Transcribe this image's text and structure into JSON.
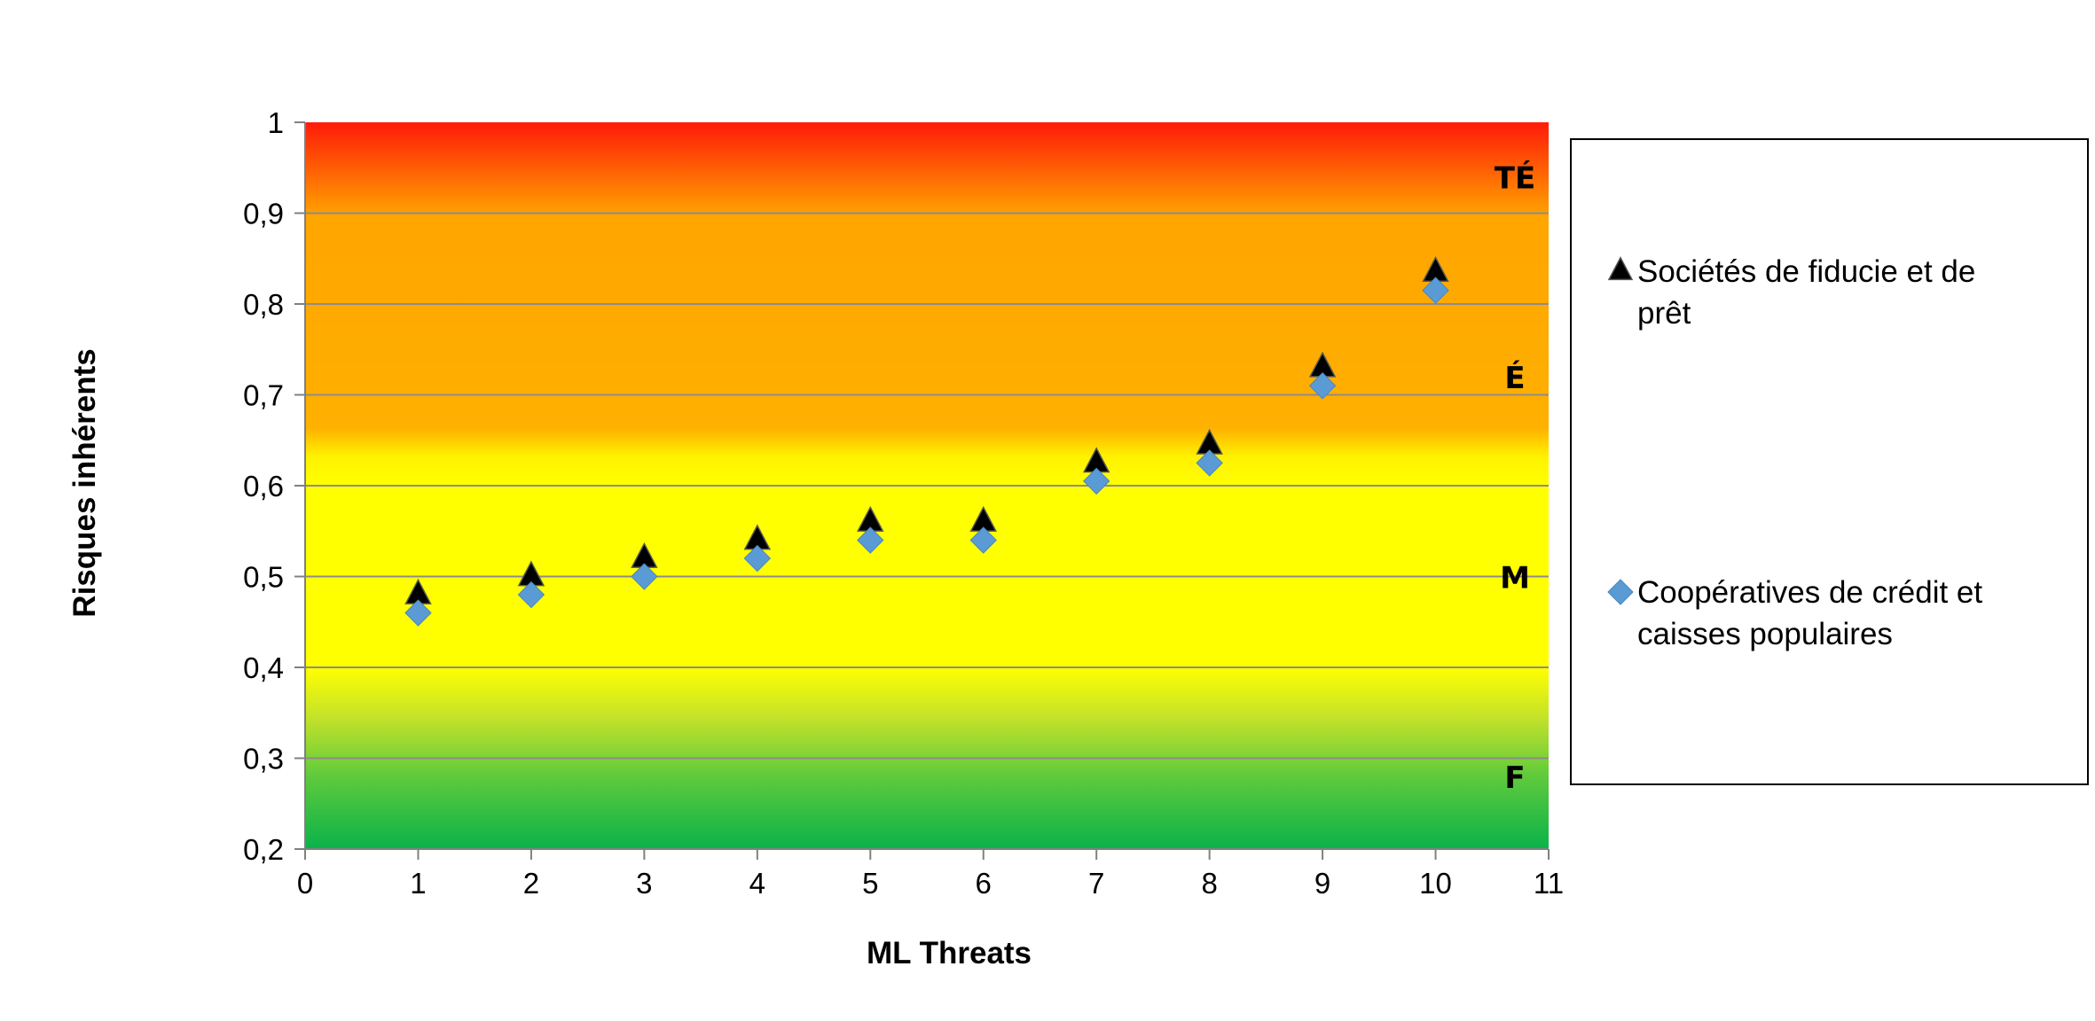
{
  "chart_data": {
    "type": "scatter",
    "title": "",
    "xlabel": "ML Threats",
    "ylabel": "Risques inhérents",
    "xlim": [
      0,
      11
    ],
    "ylim": [
      0.2,
      1
    ],
    "x_ticks": [
      "0",
      "1",
      "2",
      "3",
      "4",
      "5",
      "6",
      "7",
      "8",
      "9",
      "10",
      "11"
    ],
    "y_ticks": [
      "0,2",
      "0,3",
      "0,4",
      "0,5",
      "0,6",
      "0,7",
      "0,8",
      "0,9",
      "1"
    ],
    "grid": true,
    "background": "gradient: green (low) to yellow, orange, red (high)",
    "zones": [
      {
        "label": "TÉ",
        "y": 0.94
      },
      {
        "label": "É",
        "y": 0.72
      },
      {
        "label": "M",
        "y": 0.5
      },
      {
        "label": "F",
        "y": 0.28
      }
    ],
    "legend_position": "right",
    "series": [
      {
        "name": "Sociétés de fiducie et de prêt",
        "name_lines": [
          "Sociétés de fiducie et de",
          "prêt"
        ],
        "marker": "triangle",
        "color": "#000000",
        "x": [
          1,
          2,
          3,
          4,
          5,
          6,
          7,
          8,
          9,
          10
        ],
        "y": [
          0.48,
          0.5,
          0.52,
          0.54,
          0.56,
          0.56,
          0.625,
          0.645,
          0.73,
          0.835
        ]
      },
      {
        "name": "Coopératives de crédit et caisses populaires",
        "name_lines": [
          "Coopératives de crédit et",
          "caisses populaires"
        ],
        "marker": "diamond",
        "color": "#5b9bd5",
        "x": [
          1,
          2,
          3,
          4,
          5,
          6,
          7,
          8,
          9,
          10
        ],
        "y": [
          0.46,
          0.48,
          0.5,
          0.52,
          0.54,
          0.54,
          0.605,
          0.625,
          0.71,
          0.815
        ]
      }
    ]
  }
}
